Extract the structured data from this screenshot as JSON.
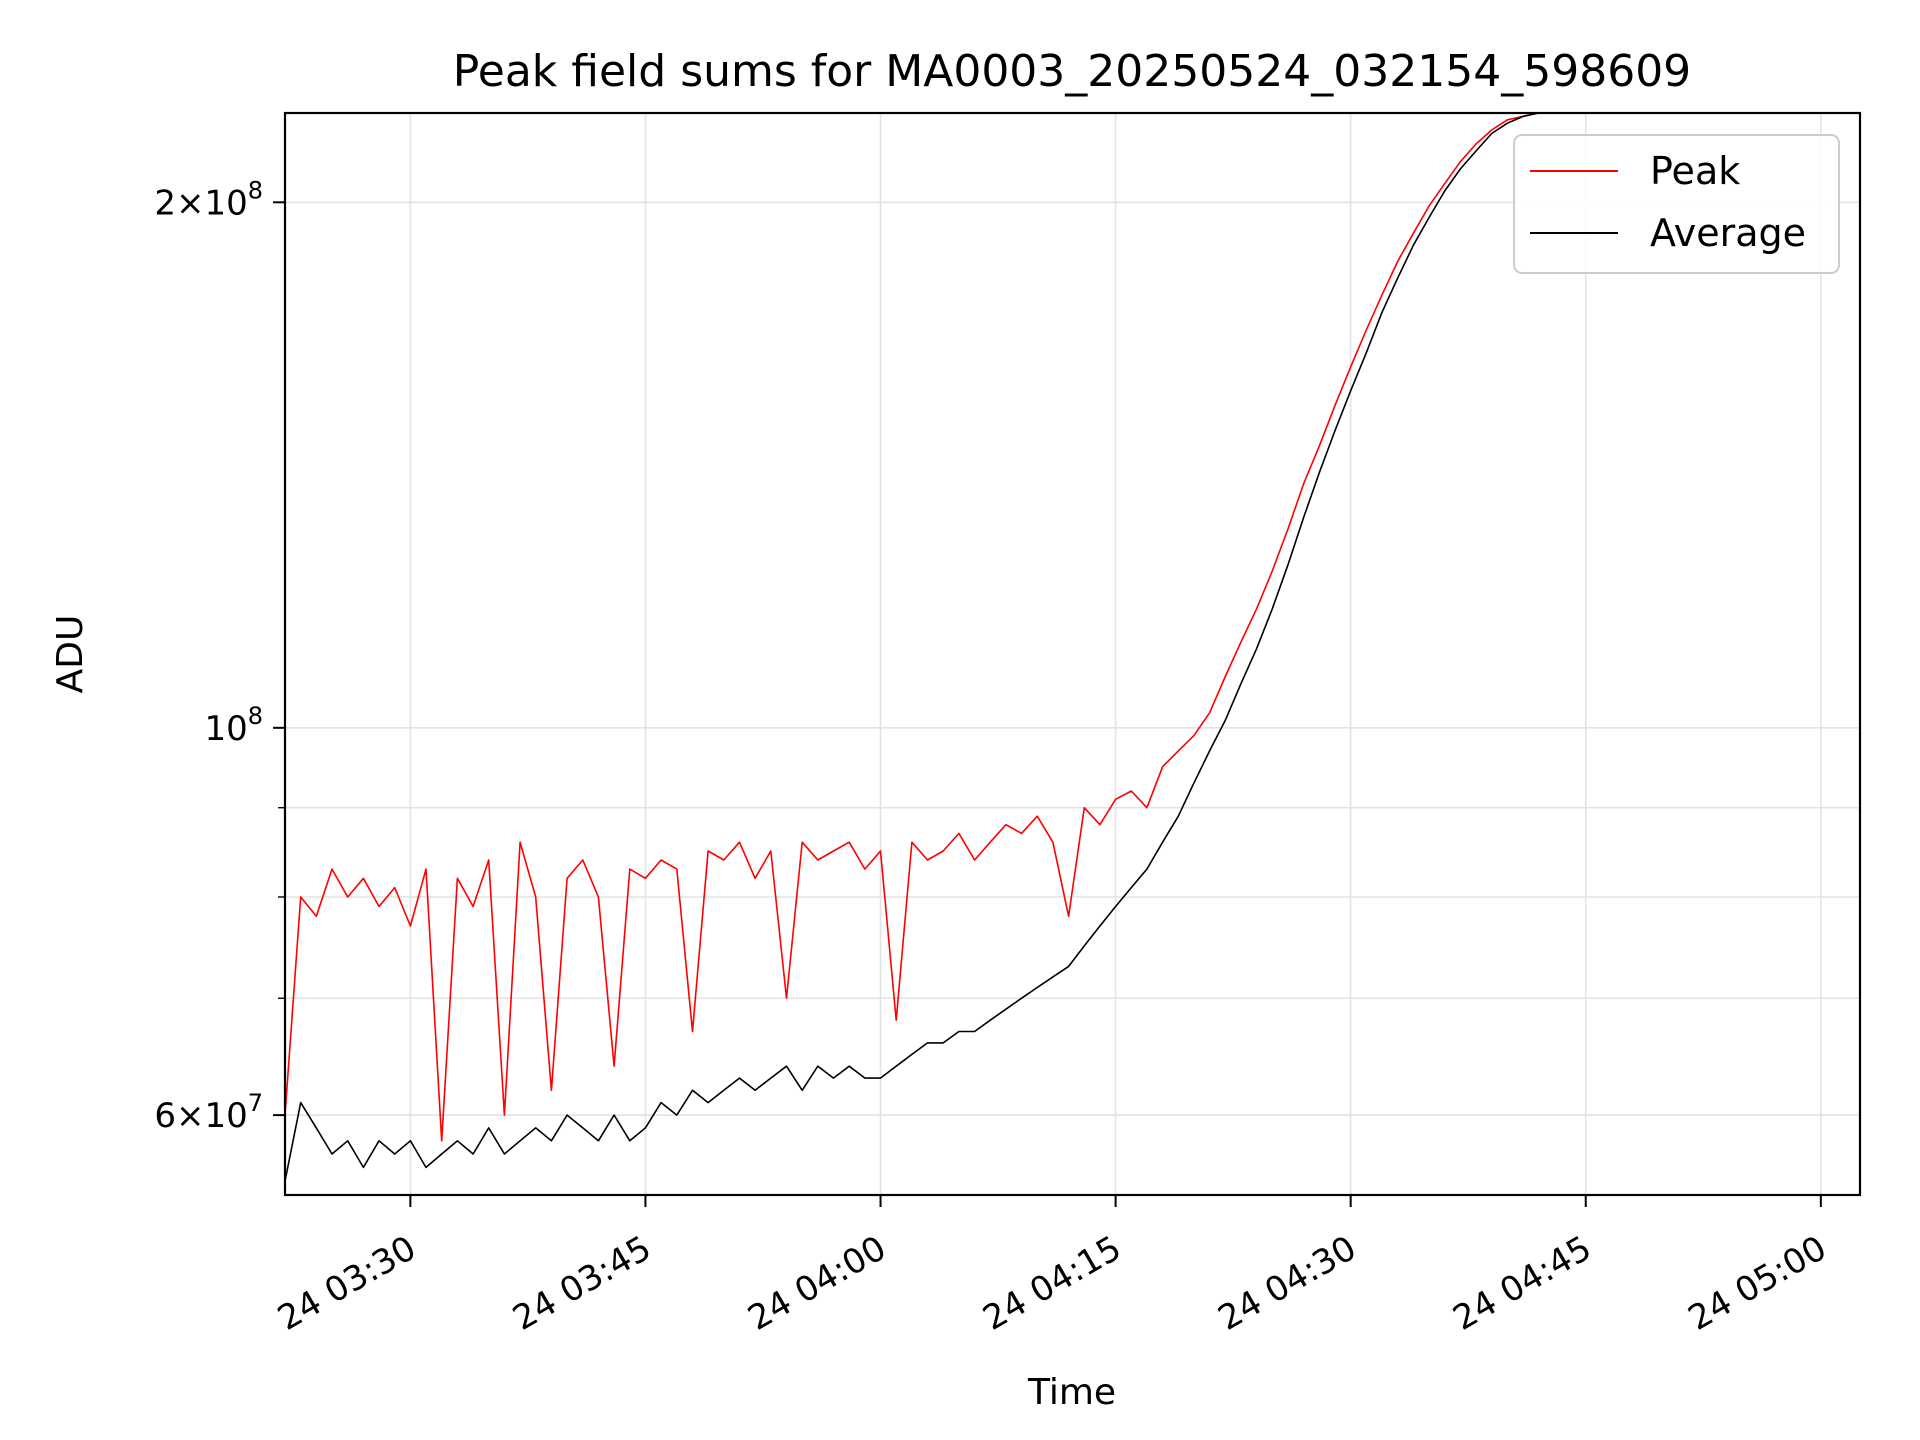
{
  "chart_data": {
    "type": "line",
    "title": "Peak field sums for MA0003_20250524_032154_598609",
    "xlabel": "Time",
    "ylabel": "ADU",
    "yscale": "log",
    "xlim": [
      "24 03:22:00",
      "24 05:02:30"
    ],
    "ylim": [
      54000000,
      225000000
    ],
    "x_ticks": [
      {
        "value": "24 03:30",
        "minutes": 30
      },
      {
        "value": "24 03:45",
        "minutes": 45
      },
      {
        "value": "24 04:00",
        "minutes": 60
      },
      {
        "value": "24 04:15",
        "minutes": 75
      },
      {
        "value": "24 04:30",
        "minutes": 90
      },
      {
        "value": "24 04:45",
        "minutes": 105
      },
      {
        "value": "24 05:00",
        "minutes": 120
      }
    ],
    "y_major_ticks": [
      {
        "value": 100000000,
        "base": "10",
        "exp": "8",
        "mult": ""
      },
      {
        "value": 200000000,
        "base": "10",
        "exp": "8",
        "mult": "2"
      },
      {
        "value": 60000000,
        "base": "10",
        "exp": "7",
        "mult": "6"
      }
    ],
    "y_minor_ticks": [
      60000000,
      70000000,
      80000000,
      90000000
    ],
    "grid": true,
    "legend_position": "upper-right",
    "series": [
      {
        "name": "Peak",
        "color": "#ff0000",
        "points": [
          [
            "24 03:22",
            60000000
          ],
          [
            "24 03:23",
            80000000
          ],
          [
            "24 03:24",
            78000000
          ],
          [
            "24 03:25",
            83000000
          ],
          [
            "24 03:26",
            80000000
          ],
          [
            "24 03:27",
            82000000
          ],
          [
            "24 03:28",
            79000000
          ],
          [
            "24 03:29",
            81000000
          ],
          [
            "24 03:30",
            77000000
          ],
          [
            "24 03:31",
            83000000
          ],
          [
            "24 03:32",
            58000000
          ],
          [
            "24 03:33",
            82000000
          ],
          [
            "24 03:34",
            79000000
          ],
          [
            "24 03:35",
            84000000
          ],
          [
            "24 03:36",
            60000000
          ],
          [
            "24 03:37",
            86000000
          ],
          [
            "24 03:38",
            80000000
          ],
          [
            "24 03:39",
            62000000
          ],
          [
            "24 03:40",
            82000000
          ],
          [
            "24 03:41",
            84000000
          ],
          [
            "24 03:42",
            80000000
          ],
          [
            "24 03:43",
            64000000
          ],
          [
            "24 03:44",
            83000000
          ],
          [
            "24 03:45",
            82000000
          ],
          [
            "24 03:46",
            84000000
          ],
          [
            "24 03:47",
            83000000
          ],
          [
            "24 03:48",
            67000000
          ],
          [
            "24 03:49",
            85000000
          ],
          [
            "24 03:50",
            84000000
          ],
          [
            "24 03:51",
            86000000
          ],
          [
            "24 03:52",
            82000000
          ],
          [
            "24 03:53",
            85000000
          ],
          [
            "24 03:54",
            70000000
          ],
          [
            "24 03:55",
            86000000
          ],
          [
            "24 03:56",
            84000000
          ],
          [
            "24 03:57",
            85000000
          ],
          [
            "24 03:58",
            86000000
          ],
          [
            "24 03:59",
            83000000
          ],
          [
            "24 04:00",
            85000000
          ],
          [
            "24 04:01",
            68000000
          ],
          [
            "24 04:02",
            86000000
          ],
          [
            "24 04:03",
            84000000
          ],
          [
            "24 04:04",
            85000000
          ],
          [
            "24 04:05",
            87000000
          ],
          [
            "24 04:06",
            84000000
          ],
          [
            "24 04:07",
            86000000
          ],
          [
            "24 04:08",
            88000000
          ],
          [
            "24 04:09",
            87000000
          ],
          [
            "24 04:10",
            89000000
          ],
          [
            "24 04:11",
            86000000
          ],
          [
            "24 04:12",
            78000000
          ],
          [
            "24 04:13",
            90000000
          ],
          [
            "24 04:14",
            88000000
          ],
          [
            "24 04:15",
            91000000
          ],
          [
            "24 04:16",
            92000000
          ],
          [
            "24 04:17",
            90000000
          ],
          [
            "24 04:18",
            95000000
          ],
          [
            "24 04:19",
            97000000
          ],
          [
            "24 04:20",
            99000000
          ],
          [
            "24 04:21",
            102000000
          ],
          [
            "24 04:22",
            107000000
          ],
          [
            "24 04:23",
            112000000
          ],
          [
            "24 04:24",
            117000000
          ],
          [
            "24 04:25",
            123000000
          ],
          [
            "24 04:26",
            130000000
          ],
          [
            "24 04:27",
            138000000
          ],
          [
            "24 04:28",
            145000000
          ],
          [
            "24 04:29",
            153000000
          ],
          [
            "24 04:30",
            161000000
          ],
          [
            "24 04:31",
            169000000
          ],
          [
            "24 04:32",
            177000000
          ],
          [
            "24 04:33",
            185000000
          ],
          [
            "24 04:34",
            192000000
          ],
          [
            "24 04:35",
            199000000
          ],
          [
            "24 04:36",
            205000000
          ],
          [
            "24 04:37",
            211000000
          ],
          [
            "24 04:38",
            216000000
          ],
          [
            "24 04:39",
            220000000
          ],
          [
            "24 04:40",
            223000000
          ],
          [
            "24 04:41",
            224000000
          ],
          [
            "24 04:42",
            225000000
          ],
          [
            "24 04:45",
            225000000
          ],
          [
            "24 04:50",
            225000000
          ],
          [
            "24 04:52",
            225000000
          ]
        ]
      },
      {
        "name": "Average",
        "color": "#000000",
        "points": [
          [
            "24 03:22",
            55000000
          ],
          [
            "24 03:23",
            61000000
          ],
          [
            "24 03:24",
            59000000
          ],
          [
            "24 03:25",
            57000000
          ],
          [
            "24 03:26",
            58000000
          ],
          [
            "24 03:27",
            56000000
          ],
          [
            "24 03:28",
            58000000
          ],
          [
            "24 03:29",
            57000000
          ],
          [
            "24 03:30",
            58000000
          ],
          [
            "24 03:31",
            56000000
          ],
          [
            "24 03:32",
            57000000
          ],
          [
            "24 03:33",
            58000000
          ],
          [
            "24 03:34",
            57000000
          ],
          [
            "24 03:35",
            59000000
          ],
          [
            "24 03:36",
            57000000
          ],
          [
            "24 03:37",
            58000000
          ],
          [
            "24 03:38",
            59000000
          ],
          [
            "24 03:39",
            58000000
          ],
          [
            "24 03:40",
            60000000
          ],
          [
            "24 03:41",
            59000000
          ],
          [
            "24 03:42",
            58000000
          ],
          [
            "24 03:43",
            60000000
          ],
          [
            "24 03:44",
            58000000
          ],
          [
            "24 03:45",
            59000000
          ],
          [
            "24 03:46",
            61000000
          ],
          [
            "24 03:47",
            60000000
          ],
          [
            "24 03:48",
            62000000
          ],
          [
            "24 03:49",
            61000000
          ],
          [
            "24 03:50",
            62000000
          ],
          [
            "24 03:51",
            63000000
          ],
          [
            "24 03:52",
            62000000
          ],
          [
            "24 03:53",
            63000000
          ],
          [
            "24 03:54",
            64000000
          ],
          [
            "24 03:55",
            62000000
          ],
          [
            "24 03:56",
            64000000
          ],
          [
            "24 03:57",
            63000000
          ],
          [
            "24 03:58",
            64000000
          ],
          [
            "24 03:59",
            63000000
          ],
          [
            "24 04:00",
            63000000
          ],
          [
            "24 04:01",
            64000000
          ],
          [
            "24 04:02",
            65000000
          ],
          [
            "24 04:03",
            66000000
          ],
          [
            "24 04:04",
            66000000
          ],
          [
            "24 04:05",
            67000000
          ],
          [
            "24 04:06",
            67000000
          ],
          [
            "24 04:07",
            68000000
          ],
          [
            "24 04:08",
            69000000
          ],
          [
            "24 04:09",
            70000000
          ],
          [
            "24 04:10",
            71000000
          ],
          [
            "24 04:11",
            72000000
          ],
          [
            "24 04:12",
            73000000
          ],
          [
            "24 04:13",
            75000000
          ],
          [
            "24 04:14",
            77000000
          ],
          [
            "24 04:15",
            79000000
          ],
          [
            "24 04:16",
            81000000
          ],
          [
            "24 04:17",
            83000000
          ],
          [
            "24 04:18",
            86000000
          ],
          [
            "24 04:19",
            89000000
          ],
          [
            "24 04:20",
            93000000
          ],
          [
            "24 04:21",
            97000000
          ],
          [
            "24 04:22",
            101000000
          ],
          [
            "24 04:23",
            106000000
          ],
          [
            "24 04:24",
            111000000
          ],
          [
            "24 04:25",
            117000000
          ],
          [
            "24 04:26",
            124000000
          ],
          [
            "24 04:27",
            132000000
          ],
          [
            "24 04:28",
            140000000
          ],
          [
            "24 04:29",
            148000000
          ],
          [
            "24 04:30",
            156000000
          ],
          [
            "24 04:31",
            164000000
          ],
          [
            "24 04:32",
            173000000
          ],
          [
            "24 04:33",
            181000000
          ],
          [
            "24 04:34",
            189000000
          ],
          [
            "24 04:35",
            196000000
          ],
          [
            "24 04:36",
            203000000
          ],
          [
            "24 04:37",
            209000000
          ],
          [
            "24 04:38",
            214000000
          ],
          [
            "24 04:39",
            219000000
          ],
          [
            "24 04:40",
            222000000
          ],
          [
            "24 04:41",
            224000000
          ],
          [
            "24 04:42",
            225000000
          ],
          [
            "24 04:45",
            225000000
          ],
          [
            "24 04:50",
            225000000
          ],
          [
            "24 04:52",
            225000000
          ]
        ]
      }
    ]
  }
}
